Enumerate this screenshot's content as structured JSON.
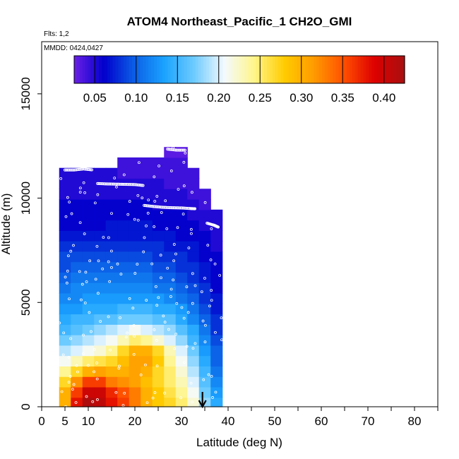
{
  "chart_data": {
    "type": "heatmap",
    "title": "ATOM4 Northeast_Pacific_1 CH2O_GMI",
    "flights_label": "Flts: 1,2",
    "dates_label": "MMDD: 0424,0427",
    "xlabel": "Latitude (deg N)",
    "ylabel": "Altitude (m)",
    "xlim": [
      0,
      85
    ],
    "ylim": [
      0,
      17500
    ],
    "x_ticks": [
      0,
      5,
      10,
      20,
      30,
      40,
      50,
      60,
      70,
      80
    ],
    "y_ticks": [
      0,
      5000,
      10000,
      15000
    ],
    "colorbar": {
      "range": [
        0.025,
        0.425
      ],
      "tick_values": [
        0.05,
        0.1,
        0.15,
        0.2,
        0.25,
        0.3,
        0.35,
        0.4
      ],
      "tick_labels": [
        "0.05",
        "0.10",
        "0.15",
        "0.20",
        "0.25",
        "0.30",
        "0.35",
        "0.40"
      ],
      "colors": [
        "#6a1fe6",
        "#0000cc",
        "#0b5fe6",
        "#1aa3ff",
        "#6ecbff",
        "#f4faff",
        "#fff58a",
        "#ffcc00",
        "#ff9a00",
        "#ff4d00",
        "#dd0000",
        "#a81010"
      ]
    },
    "lat_centers": [
      5,
      7.5,
      10,
      12.5,
      15,
      17.5,
      20,
      22.5,
      25,
      27.5,
      30,
      32.5,
      35,
      37.5
    ],
    "alt_levels": [
      200,
      700,
      1200,
      1700,
      2200,
      2700,
      3200,
      3700,
      4200,
      4700,
      5200,
      5700,
      6200,
      6700,
      7200,
      7700,
      8200,
      8700,
      9200,
      9700,
      10200,
      10700,
      11200,
      11700,
      12200
    ],
    "values": [
      [
        0.3,
        0.38,
        0.42,
        0.41,
        0.38,
        0.36,
        0.33,
        0.3,
        0.28,
        0.27,
        0.25,
        0.22,
        0.18,
        0.14
      ],
      [
        0.3,
        0.36,
        0.4,
        0.4,
        0.37,
        0.35,
        0.33,
        0.3,
        0.28,
        0.26,
        0.24,
        0.21,
        0.17,
        0.13
      ],
      [
        0.27,
        0.32,
        0.36,
        0.36,
        0.33,
        0.32,
        0.31,
        0.29,
        0.27,
        0.25,
        0.23,
        0.2,
        0.16,
        0.12
      ],
      [
        0.24,
        0.27,
        0.3,
        0.31,
        0.3,
        0.3,
        0.31,
        0.3,
        0.27,
        0.25,
        0.22,
        0.19,
        0.15,
        0.11
      ],
      [
        0.21,
        0.23,
        0.25,
        0.26,
        0.27,
        0.29,
        0.31,
        0.31,
        0.28,
        0.24,
        0.21,
        0.18,
        0.14,
        0.1
      ],
      [
        0.19,
        0.2,
        0.21,
        0.22,
        0.24,
        0.27,
        0.3,
        0.3,
        0.27,
        0.23,
        0.2,
        0.17,
        0.13,
        0.1
      ],
      [
        0.17,
        0.18,
        0.19,
        0.2,
        0.21,
        0.23,
        0.25,
        0.24,
        0.22,
        0.2,
        0.18,
        0.15,
        0.12,
        0.09
      ],
      [
        0.15,
        0.16,
        0.17,
        0.18,
        0.19,
        0.2,
        0.21,
        0.2,
        0.19,
        0.18,
        0.16,
        0.14,
        0.11,
        0.08
      ],
      [
        0.14,
        0.15,
        0.15,
        0.16,
        0.16,
        0.17,
        0.17,
        0.17,
        0.16,
        0.16,
        0.14,
        0.12,
        0.1,
        0.08
      ],
      [
        0.13,
        0.13,
        0.14,
        0.14,
        0.14,
        0.15,
        0.15,
        0.15,
        0.14,
        0.14,
        0.13,
        0.11,
        0.09,
        0.07
      ],
      [
        0.12,
        0.12,
        0.13,
        0.13,
        0.13,
        0.13,
        0.13,
        0.13,
        0.13,
        0.12,
        0.11,
        0.1,
        0.08,
        0.07
      ],
      [
        0.11,
        0.12,
        0.12,
        0.12,
        0.12,
        0.12,
        0.12,
        0.12,
        0.11,
        0.11,
        0.1,
        0.09,
        0.08,
        0.06
      ],
      [
        0.1,
        0.11,
        0.11,
        0.11,
        0.11,
        0.11,
        0.11,
        0.11,
        0.1,
        0.1,
        0.09,
        0.08,
        0.07,
        0.06
      ],
      [
        0.09,
        0.1,
        0.1,
        0.1,
        0.1,
        0.1,
        0.1,
        0.1,
        0.09,
        0.09,
        0.08,
        0.08,
        0.07,
        0.06
      ],
      [
        0.09,
        0.09,
        0.09,
        0.09,
        0.09,
        0.09,
        0.09,
        0.09,
        0.08,
        0.08,
        0.08,
        0.07,
        0.06,
        0.06
      ],
      [
        0.08,
        0.08,
        0.08,
        0.08,
        0.08,
        0.08,
        0.08,
        0.08,
        0.08,
        0.07,
        0.07,
        0.07,
        0.06,
        0.05
      ],
      [
        0.07,
        0.07,
        0.07,
        0.07,
        0.07,
        0.07,
        0.07,
        0.07,
        0.07,
        0.07,
        0.06,
        0.06,
        0.06,
        0.05
      ],
      [
        0.06,
        0.06,
        0.06,
        0.06,
        0.07,
        0.07,
        0.07,
        0.07,
        0.06,
        0.06,
        0.06,
        0.06,
        0.05,
        0.05
      ],
      [
        0.06,
        0.06,
        0.06,
        0.06,
        0.06,
        0.06,
        0.06,
        0.06,
        0.06,
        0.06,
        0.06,
        0.05,
        0.05,
        0.05
      ],
      [
        0.06,
        0.06,
        0.06,
        0.06,
        0.06,
        0.06,
        0.06,
        0.06,
        0.05,
        0.05,
        0.05,
        0.05,
        0.04,
        null
      ],
      [
        0.05,
        0.05,
        0.05,
        0.05,
        0.05,
        0.05,
        0.05,
        0.05,
        0.05,
        0.05,
        0.05,
        0.04,
        0.04,
        null
      ],
      [
        0.05,
        0.05,
        0.05,
        0.05,
        0.05,
        0.05,
        0.05,
        0.05,
        0.05,
        0.04,
        0.04,
        0.04,
        null,
        null
      ],
      [
        0.05,
        0.05,
        0.05,
        0.05,
        0.05,
        0.04,
        0.04,
        0.04,
        0.04,
        0.04,
        0.04,
        0.04,
        null,
        null
      ],
      [
        null,
        null,
        null,
        null,
        null,
        0.04,
        0.04,
        0.04,
        0.04,
        0.04,
        0.04,
        null,
        null,
        null
      ],
      [
        null,
        null,
        null,
        null,
        null,
        null,
        null,
        null,
        null,
        0.03,
        0.03,
        null,
        null,
        null
      ]
    ],
    "flight_tracks": [
      {
        "lat": [
          5,
          7,
          9,
          11
        ],
        "alt": [
          11350,
          11350,
          11400,
          11350
        ]
      },
      {
        "lat": [
          12,
          14,
          16,
          18,
          20,
          22
        ],
        "alt": [
          10700,
          10680,
          10670,
          10660,
          10650,
          10600
        ]
      },
      {
        "lat": [
          22,
          24,
          26,
          28,
          30,
          32,
          33
        ],
        "alt": [
          9650,
          9600,
          9560,
          9540,
          9530,
          9500,
          9490
        ]
      },
      {
        "lat": [
          27,
          29,
          31
        ],
        "alt": [
          12350,
          12300,
          12300
        ]
      },
      {
        "lat": [
          35.5,
          37,
          38
        ],
        "alt": [
          8800,
          8700,
          8600
        ]
      }
    ],
    "arrow_lat": 34.5
  }
}
